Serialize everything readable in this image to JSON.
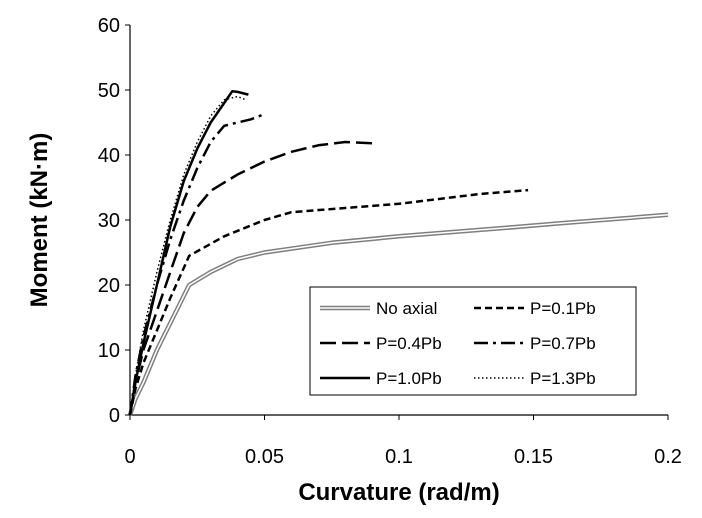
{
  "chart_data": {
    "type": "line",
    "title": "",
    "xlabel": "Curvature (rad/m)",
    "ylabel": "Moment (kN·m)",
    "xlim": [
      0,
      0.2
    ],
    "ylim": [
      0,
      60
    ],
    "xticks": [
      0,
      0.05,
      0.1,
      0.15,
      0.2
    ],
    "xtick_labels": [
      "0",
      "0.05",
      "0.1",
      "0.15",
      "0.2"
    ],
    "yticks": [
      0,
      10,
      20,
      30,
      40,
      50,
      60
    ],
    "ytick_labels": [
      "0",
      "10",
      "20",
      "30",
      "40",
      "50",
      "60"
    ],
    "grid": false,
    "legend_position": "bottom-right",
    "series": [
      {
        "name": "No axial",
        "style": "double-gray",
        "points": [
          [
            0,
            0
          ],
          [
            0.002,
            2.5
          ],
          [
            0.005,
            5
          ],
          [
            0.01,
            10
          ],
          [
            0.022,
            20
          ],
          [
            0.03,
            22
          ],
          [
            0.04,
            24
          ],
          [
            0.05,
            25
          ],
          [
            0.075,
            26.5
          ],
          [
            0.1,
            27.5
          ],
          [
            0.14,
            28.8
          ],
          [
            0.16,
            29.5
          ],
          [
            0.2,
            30.8
          ]
        ]
      },
      {
        "name": "P=0.1Pb",
        "style": "short-dash",
        "points": [
          [
            0,
            0
          ],
          [
            0.002,
            4
          ],
          [
            0.005,
            8
          ],
          [
            0.01,
            13
          ],
          [
            0.015,
            18
          ],
          [
            0.022,
            24.5
          ],
          [
            0.035,
            27.5
          ],
          [
            0.05,
            30
          ],
          [
            0.06,
            31.2
          ],
          [
            0.1,
            32.5
          ],
          [
            0.13,
            34
          ],
          [
            0.148,
            34.6
          ]
        ]
      },
      {
        "name": "P=0.4Pb",
        "style": "long-dash",
        "points": [
          [
            0,
            0
          ],
          [
            0.002,
            5
          ],
          [
            0.005,
            10
          ],
          [
            0.01,
            16
          ],
          [
            0.015,
            22
          ],
          [
            0.02,
            28
          ],
          [
            0.025,
            32
          ],
          [
            0.03,
            34.5
          ],
          [
            0.04,
            37
          ],
          [
            0.05,
            39
          ],
          [
            0.06,
            40.5
          ],
          [
            0.07,
            41.5
          ],
          [
            0.08,
            42
          ],
          [
            0.09,
            41.8
          ]
        ]
      },
      {
        "name": "P=0.7Pb",
        "style": "dash-dot",
        "points": [
          [
            0,
            0
          ],
          [
            0.002,
            6
          ],
          [
            0.005,
            12
          ],
          [
            0.01,
            20
          ],
          [
            0.015,
            27
          ],
          [
            0.02,
            33
          ],
          [
            0.025,
            38
          ],
          [
            0.03,
            42
          ],
          [
            0.035,
            44.5
          ],
          [
            0.04,
            45
          ],
          [
            0.045,
            45.5
          ],
          [
            0.05,
            46.3
          ]
        ]
      },
      {
        "name": "P=1.0Pb",
        "style": "solid-black",
        "points": [
          [
            0,
            0
          ],
          [
            0.002,
            5
          ],
          [
            0.005,
            11
          ],
          [
            0.01,
            20
          ],
          [
            0.015,
            29
          ],
          [
            0.02,
            36
          ],
          [
            0.025,
            41
          ],
          [
            0.03,
            45
          ],
          [
            0.035,
            48
          ],
          [
            0.038,
            49.8
          ],
          [
            0.04,
            49.7
          ],
          [
            0.044,
            49.3
          ]
        ]
      },
      {
        "name": "P=1.3Pb",
        "style": "dotted",
        "points": [
          [
            0,
            0
          ],
          [
            0.002,
            6
          ],
          [
            0.005,
            13
          ],
          [
            0.01,
            22
          ],
          [
            0.015,
            30
          ],
          [
            0.02,
            37
          ],
          [
            0.025,
            42
          ],
          [
            0.03,
            46
          ],
          [
            0.035,
            48.5
          ],
          [
            0.04,
            49
          ],
          [
            0.043,
            48.5
          ]
        ]
      }
    ]
  }
}
